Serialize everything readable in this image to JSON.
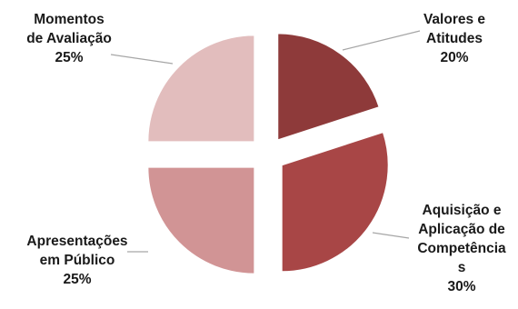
{
  "chart_data": {
    "type": "pie",
    "exploded": true,
    "start_angle_deg": 0,
    "direction": "clockwise",
    "slices": [
      {
        "label_lines": [
          "Valores e",
          "Atitudes"
        ],
        "value": 20,
        "percent_label": "20%",
        "color": "#8e3a3a"
      },
      {
        "label_lines": [
          "Aquisição e",
          "Aplicação de",
          "Competência",
          "s"
        ],
        "value": 30,
        "percent_label": "30%",
        "color": "#a84646"
      },
      {
        "label_lines": [
          "Apresentações",
          "em Público"
        ],
        "value": 25,
        "percent_label": "25%",
        "color": "#d19495"
      },
      {
        "label_lines": [
          "Momentos",
          "de Avaliação"
        ],
        "value": 25,
        "percent_label": "25%",
        "color": "#e2bdbd"
      }
    ]
  }
}
